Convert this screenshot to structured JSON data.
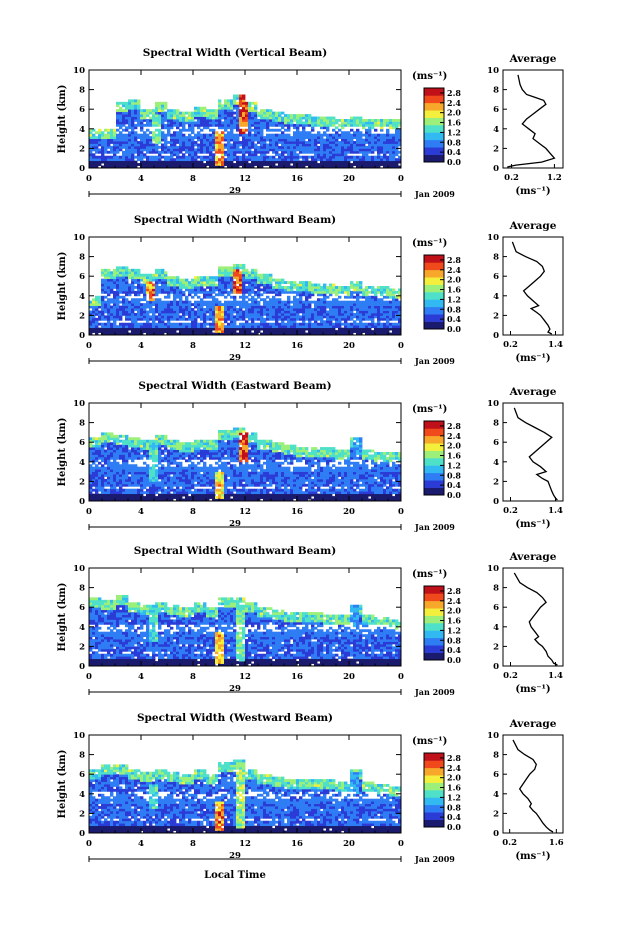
{
  "figure": {
    "date_label": "Jan 2009",
    "day_label": "29",
    "xlabel": "Local Time",
    "ylabel": "Height (km)",
    "unit_label": "(ms⁻¹)",
    "avg_title": "Average",
    "avg_xlabel": "(ms⁻¹)",
    "x_ticks": [
      "0",
      "4",
      "8",
      "12",
      "16",
      "20",
      "0"
    ],
    "y_ticks": [
      "0",
      "2",
      "4",
      "6",
      "8",
      "10"
    ],
    "colorbar_ticks": [
      "2.8",
      "2.4",
      "2.0",
      "1.6",
      "1.2",
      "0.8",
      "0.4",
      "0.0"
    ],
    "colors": {
      "scale": [
        "#1a1a6e",
        "#2b3bd6",
        "#2f7df5",
        "#33b9f2",
        "#4fe0c9",
        "#9cf07a",
        "#f3ef3c",
        "#f7a72a",
        "#f04a1c",
        "#c0101a"
      ],
      "axis": "#000000"
    }
  },
  "chart_data": [
    {
      "type": "heatmap",
      "title": "Spectral Width (Vertical Beam)",
      "xlabel": "",
      "ylabel": "Height (km)",
      "xlim": [
        0,
        24
      ],
      "ylim": [
        0,
        10
      ],
      "colorbar": {
        "label": "(ms⁻¹)",
        "range": [
          0,
          3.0
        ],
        "ticks": [
          0.0,
          0.4,
          0.8,
          1.2,
          1.6,
          2.0,
          2.4,
          2.8
        ]
      },
      "top_km": [
        3.9,
        3.9,
        6.8,
        7.0,
        6.0,
        6.8,
        6.0,
        5.8,
        6.3,
        6.0,
        7.1,
        7.5,
        6.8,
        6.0,
        5.8,
        5.5,
        5.4,
        5.3,
        5.2,
        5.0,
        5.3,
        5.0,
        5.0,
        4.9
      ],
      "bands": [
        {
          "x": 5.1,
          "y0": 2.5,
          "y1": 5.5,
          "v": 1.6
        },
        {
          "x": 10.0,
          "y0": 0.3,
          "y1": 4.0,
          "v": 2.4
        },
        {
          "x": 11.8,
          "y0": 3.5,
          "y1": 7.5,
          "v": 2.8
        }
      ],
      "average": {
        "x": [
          0.35,
          0.4,
          0.45,
          0.55,
          0.75,
          0.95,
          1.0,
          0.85,
          0.7,
          0.55,
          0.45,
          0.6,
          0.75,
          0.7,
          0.85,
          1.0,
          1.1,
          1.2,
          0.9,
          0.3,
          0.1
        ],
        "y": [
          9.5,
          8.5,
          8.0,
          7.5,
          7.2,
          6.9,
          6.5,
          6.0,
          5.5,
          5.0,
          4.5,
          4.0,
          3.5,
          3.0,
          2.5,
          2.0,
          1.5,
          1.0,
          0.6,
          0.3,
          0.1
        ],
        "xlim": [
          0.0,
          1.4
        ],
        "xticks": [
          "0.2",
          "1.2"
        ]
      }
    },
    {
      "type": "heatmap",
      "title": "Spectral Width (Northward Beam)",
      "xlabel": "",
      "ylabel": "Height (km)",
      "xlim": [
        0,
        24
      ],
      "ylim": [
        0,
        10
      ],
      "colorbar": {
        "label": "(ms⁻¹)",
        "range": [
          0,
          3.0
        ],
        "ticks": [
          0.0,
          0.4,
          0.8,
          1.2,
          1.6,
          2.0,
          2.4,
          2.8
        ]
      },
      "top_km": [
        4.0,
        6.8,
        7.0,
        6.7,
        6.2,
        6.8,
        6.0,
        5.8,
        6.1,
        6.0,
        7.0,
        7.3,
        6.8,
        6.2,
        5.8,
        5.5,
        5.4,
        5.3,
        5.3,
        5.0,
        5.4,
        5.0,
        4.9,
        4.8
      ],
      "bands": [
        {
          "x": 4.8,
          "y0": 3.5,
          "y1": 5.5,
          "v": 2.6
        },
        {
          "x": 10.0,
          "y0": 0.2,
          "y1": 3.0,
          "v": 2.4
        },
        {
          "x": 11.5,
          "y0": 4.0,
          "y1": 6.8,
          "v": 2.8
        }
      ],
      "average": {
        "x": [
          0.25,
          0.35,
          0.6,
          0.9,
          1.05,
          1.1,
          1.0,
          0.85,
          0.7,
          0.55,
          0.65,
          0.8,
          0.95,
          0.75,
          0.9,
          1.0,
          1.1,
          1.2,
          1.25,
          1.2,
          1.3
        ],
        "y": [
          9.5,
          8.5,
          8.0,
          7.5,
          7.0,
          6.5,
          6.0,
          5.5,
          5.0,
          4.5,
          4.0,
          3.5,
          3.0,
          2.7,
          2.3,
          2.0,
          1.5,
          1.0,
          0.6,
          0.3,
          0.1
        ],
        "xlim": [
          0.0,
          1.6
        ],
        "xticks": [
          "0.2",
          "1.4"
        ]
      }
    },
    {
      "type": "heatmap",
      "title": "Spectral Width (Eastward Beam)",
      "xlabel": "",
      "ylabel": "Height (km)",
      "xlim": [
        0,
        24
      ],
      "ylim": [
        0,
        10
      ],
      "colorbar": {
        "label": "(ms⁻¹)",
        "range": [
          0,
          3.0
        ],
        "ticks": [
          0.0,
          0.4,
          0.8,
          1.2,
          1.6,
          2.0,
          2.4,
          2.8
        ]
      },
      "top_km": [
        6.5,
        7.0,
        6.8,
        6.5,
        6.3,
        6.8,
        6.2,
        6.0,
        6.3,
        6.2,
        7.2,
        7.6,
        6.9,
        6.2,
        5.9,
        5.7,
        5.6,
        5.5,
        5.6,
        5.3,
        6.6,
        5.3,
        5.0,
        4.9
      ],
      "bands": [
        {
          "x": 5.0,
          "y0": 2.0,
          "y1": 5.8,
          "v": 1.4
        },
        {
          "x": 10.0,
          "y0": 0.3,
          "y1": 3.0,
          "v": 2.2
        },
        {
          "x": 11.8,
          "y0": 4.0,
          "y1": 7.0,
          "v": 2.8
        },
        {
          "x": 20.6,
          "y0": 4.5,
          "y1": 6.6,
          "v": 1.0
        }
      ],
      "average": {
        "x": [
          0.3,
          0.4,
          0.6,
          0.85,
          1.1,
          1.3,
          1.15,
          1.0,
          0.85,
          0.7,
          0.8,
          1.0,
          1.15,
          0.9,
          1.05,
          1.2,
          1.25,
          1.3,
          1.35,
          1.4,
          1.45
        ],
        "y": [
          9.5,
          8.5,
          8.0,
          7.5,
          7.0,
          6.5,
          6.0,
          5.5,
          5.0,
          4.5,
          4.0,
          3.5,
          3.0,
          2.7,
          2.3,
          2.0,
          1.5,
          1.0,
          0.6,
          0.3,
          0.1
        ],
        "xlim": [
          0.0,
          1.6
        ],
        "xticks": [
          "0.2",
          "1.4"
        ]
      }
    },
    {
      "type": "heatmap",
      "title": "Spectral Width (Southward Beam)",
      "xlabel": "",
      "ylabel": "Height (km)",
      "xlim": [
        0,
        24
      ],
      "ylim": [
        0,
        10
      ],
      "colorbar": {
        "label": "(ms⁻¹)",
        "range": [
          0,
          3.0
        ],
        "ticks": [
          0.0,
          0.4,
          0.8,
          1.2,
          1.6,
          2.0,
          2.4,
          2.8
        ]
      },
      "top_km": [
        7.0,
        6.8,
        7.2,
        6.5,
        6.3,
        6.5,
        6.2,
        6.0,
        6.4,
        6.0,
        7.0,
        7.1,
        6.6,
        6.0,
        5.7,
        5.5,
        5.4,
        5.4,
        5.3,
        5.2,
        6.2,
        5.3,
        5.0,
        4.8
      ],
      "bands": [
        {
          "x": 4.9,
          "y0": 2.5,
          "y1": 5.5,
          "v": 1.4
        },
        {
          "x": 10.0,
          "y0": 0.2,
          "y1": 3.5,
          "v": 2.4
        },
        {
          "x": 11.6,
          "y0": 0.5,
          "y1": 6.5,
          "v": 1.6
        },
        {
          "x": 20.5,
          "y0": 4.0,
          "y1": 6.2,
          "v": 1.0
        }
      ],
      "average": {
        "x": [
          0.3,
          0.45,
          0.65,
          0.9,
          1.05,
          1.15,
          1.0,
          0.9,
          0.8,
          0.7,
          0.75,
          0.85,
          0.95,
          0.85,
          0.95,
          1.05,
          1.15,
          1.2,
          1.3,
          1.35,
          1.45
        ],
        "y": [
          9.5,
          8.5,
          8.0,
          7.5,
          7.0,
          6.5,
          6.0,
          5.5,
          5.0,
          4.5,
          4.0,
          3.5,
          3.0,
          2.7,
          2.3,
          2.0,
          1.5,
          1.0,
          0.6,
          0.3,
          0.1
        ],
        "xlim": [
          0.0,
          1.6
        ],
        "xticks": [
          "0.2",
          "1.4"
        ]
      }
    },
    {
      "type": "heatmap",
      "title": "Spectral Width (Westward Beam)",
      "xlabel": "Local Time",
      "ylabel": "Height (km)",
      "xlim": [
        0,
        24
      ],
      "ylim": [
        0,
        10
      ],
      "colorbar": {
        "label": "(ms⁻¹)",
        "range": [
          0,
          3.0
        ],
        "ticks": [
          0.0,
          0.4,
          0.8,
          1.2,
          1.6,
          2.0,
          2.4,
          2.8
        ]
      },
      "top_km": [
        6.5,
        7.0,
        7.0,
        6.6,
        6.3,
        6.6,
        6.2,
        6.0,
        6.5,
        6.1,
        7.2,
        7.4,
        6.6,
        6.0,
        5.8,
        5.6,
        5.5,
        5.4,
        5.4,
        5.2,
        6.6,
        5.3,
        4.9,
        4.8
      ],
      "bands": [
        {
          "x": 5.0,
          "y0": 2.5,
          "y1": 5.0,
          "v": 1.4
        },
        {
          "x": 10.0,
          "y0": 0.3,
          "y1": 3.2,
          "v": 2.6
        },
        {
          "x": 11.6,
          "y0": 0.5,
          "y1": 6.8,
          "v": 1.8
        },
        {
          "x": 20.5,
          "y0": 4.0,
          "y1": 6.3,
          "v": 1.0
        }
      ],
      "average": {
        "x": [
          0.3,
          0.45,
          0.65,
          0.9,
          1.0,
          0.95,
          0.8,
          0.7,
          0.6,
          0.5,
          0.6,
          0.75,
          0.85,
          0.8,
          0.9,
          1.0,
          1.1,
          1.2,
          1.3,
          1.4,
          1.5
        ],
        "y": [
          9.5,
          8.5,
          8.0,
          7.5,
          7.0,
          6.5,
          6.0,
          5.5,
          5.0,
          4.5,
          4.0,
          3.5,
          3.0,
          2.7,
          2.3,
          2.0,
          1.5,
          1.0,
          0.6,
          0.3,
          0.1
        ],
        "xlim": [
          0.0,
          1.8
        ],
        "xticks": [
          "0.2",
          "1.6"
        ]
      }
    }
  ]
}
